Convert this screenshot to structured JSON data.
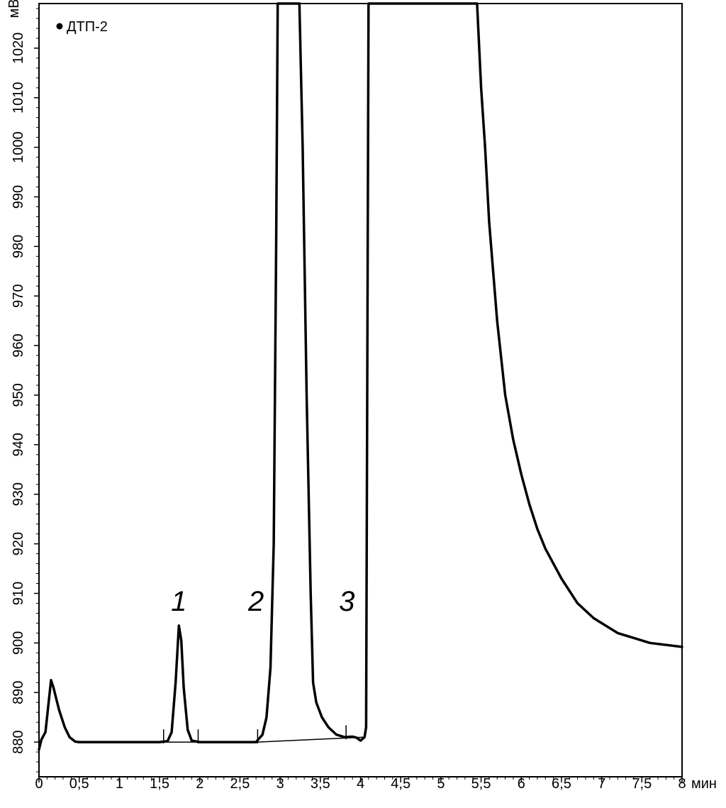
{
  "chart_data": {
    "type": "line",
    "title": "",
    "xlabel": "мин",
    "ylabel": "мВ",
    "xlim": [
      0,
      8
    ],
    "ylim": [
      873,
      1029
    ],
    "x_ticks": [
      "0",
      "0,5",
      "1",
      "1,5",
      "2",
      "2,5",
      "3",
      "3,5",
      "4",
      "4,5",
      "5",
      "5,5",
      "6",
      "6,5",
      "7",
      "7,5",
      "8"
    ],
    "y_ticks": [
      "880",
      "890",
      "900",
      "910",
      "920",
      "930",
      "940",
      "950",
      "960",
      "970",
      "980",
      "990",
      "1000",
      "1010",
      "1020"
    ],
    "grid": false,
    "legend": {
      "position": "top-left",
      "entries": [
        {
          "name": "ДТП-2",
          "marker": "dot"
        }
      ]
    },
    "series": [
      {
        "name": "ДТП-2",
        "points": [
          [
            0.0,
            878.5
          ],
          [
            0.03,
            880.5
          ],
          [
            0.08,
            882
          ],
          [
            0.12,
            888
          ],
          [
            0.15,
            892.5
          ],
          [
            0.18,
            891
          ],
          [
            0.25,
            886.5
          ],
          [
            0.32,
            883
          ],
          [
            0.38,
            881
          ],
          [
            0.45,
            880.1
          ],
          [
            0.5,
            880
          ],
          [
            1.0,
            880
          ],
          [
            1.5,
            880
          ],
          [
            1.6,
            880.2
          ],
          [
            1.65,
            882
          ],
          [
            1.7,
            892
          ],
          [
            1.74,
            903.5
          ],
          [
            1.77,
            900.5
          ],
          [
            1.8,
            891
          ],
          [
            1.85,
            882.5
          ],
          [
            1.9,
            880.3
          ],
          [
            2.0,
            880
          ],
          [
            2.5,
            880
          ],
          [
            2.7,
            880
          ],
          [
            2.78,
            881.5
          ],
          [
            2.83,
            885
          ],
          [
            2.88,
            895
          ],
          [
            2.92,
            920
          ],
          [
            2.95,
            980
          ],
          [
            2.97,
            1029
          ],
          [
            3.24,
            1029
          ],
          [
            3.28,
            1000
          ],
          [
            3.33,
            950
          ],
          [
            3.38,
            910
          ],
          [
            3.41,
            892
          ],
          [
            3.45,
            888
          ],
          [
            3.52,
            885
          ],
          [
            3.6,
            883
          ],
          [
            3.7,
            881.5
          ],
          [
            3.8,
            881
          ],
          [
            3.9,
            881.1
          ],
          [
            3.95,
            880.9
          ],
          [
            4.0,
            880.3
          ],
          [
            4.05,
            881
          ],
          [
            4.07,
            883
          ],
          [
            4.1,
            1029
          ],
          [
            5.45,
            1029
          ],
          [
            5.5,
            1012
          ],
          [
            5.55,
            1000
          ],
          [
            5.6,
            985
          ],
          [
            5.7,
            965
          ],
          [
            5.8,
            950
          ],
          [
            5.9,
            941
          ],
          [
            6.0,
            934
          ],
          [
            6.1,
            928
          ],
          [
            6.2,
            923
          ],
          [
            6.3,
            919
          ],
          [
            6.5,
            913
          ],
          [
            6.7,
            908
          ],
          [
            6.9,
            905
          ],
          [
            7.2,
            902
          ],
          [
            7.6,
            900
          ],
          [
            8.0,
            899.2
          ]
        ]
      }
    ],
    "baseline_segments": [
      [
        [
          0.5,
          880
        ],
        [
          2.72,
          880
        ]
      ],
      [
        [
          2.72,
          880
        ],
        [
          4.05,
          881
        ]
      ]
    ],
    "peak_markers": [
      1.55,
      1.98,
      2.72,
      3.82
    ],
    "annotations": [
      {
        "text": "1",
        "x": 1.74,
        "y": 906.5
      },
      {
        "text": "2",
        "x": 2.7,
        "y": 906.5
      },
      {
        "text": "3",
        "x": 3.83,
        "y": 906.5
      }
    ]
  }
}
